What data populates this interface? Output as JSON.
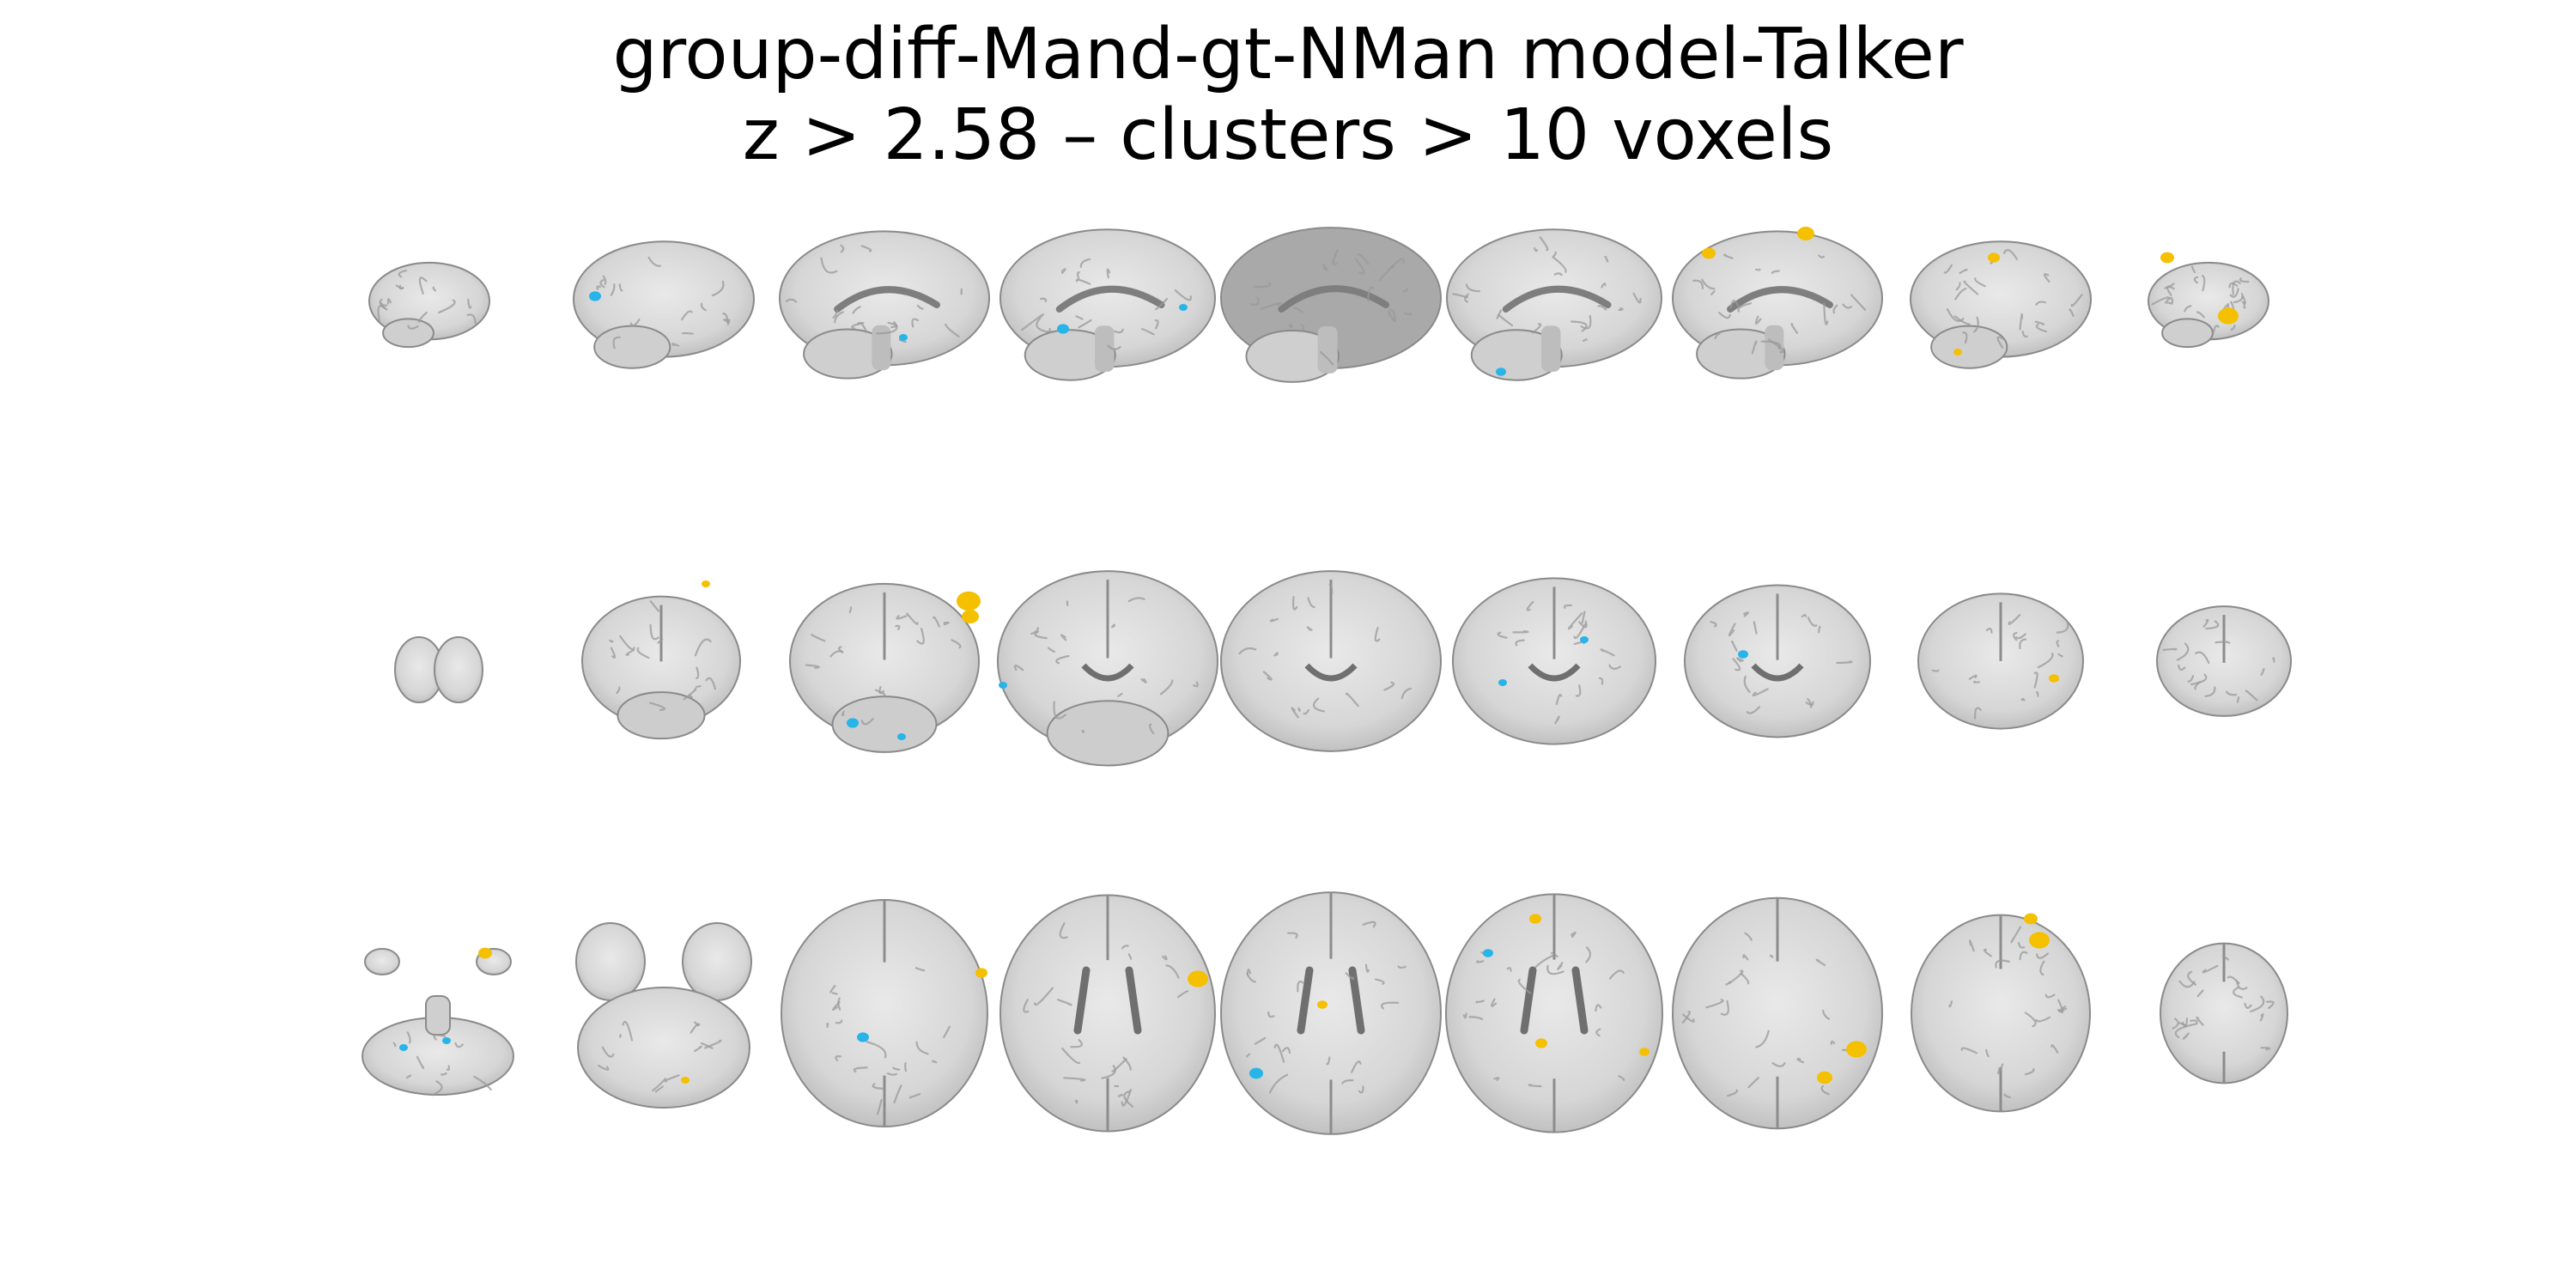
{
  "figure": {
    "title_line1": "group-diff-Mand-gt-NMan model-Talker",
    "title_line2": "z > 2.58 – clusters > 10 voxels"
  },
  "views": [
    {
      "name": "sagittal",
      "slices": 9
    },
    {
      "name": "coronal",
      "slices": 9
    },
    {
      "name": "axial",
      "slices": 9
    }
  ],
  "colors": {
    "background": "#ffffff",
    "brain_fill": "#d6d6d6",
    "brain_outline": "#8a8a8a",
    "positive_cluster": "#f5c000",
    "negative_cluster": "#27b4e8"
  }
}
